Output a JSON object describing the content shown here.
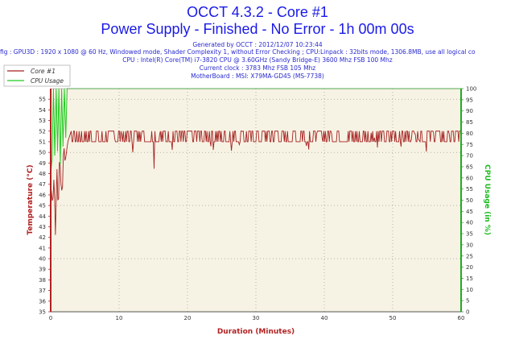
{
  "header": {
    "title_line1": "OCCT 4.3.2 - Core #1",
    "title_line2": "Power Supply - Finished - No Error - 1h 00m 00s",
    "generated": "Generated by OCCT : 2012/12/07 10:23:44",
    "config": "fig : GPU3D : 1920 x 1080 @ 60 Hz, Windowed mode, Shader Complexity 1, without Error Checking ; CPU:Linpack : 32bits mode, 1306.8MB, use all logical co",
    "cpu": "CPU : Intel(R) Core(TM) i7-3820 CPU @ 3.60GHz (Sandy Bridge-E) 3600 Mhz FSB 100 Mhz",
    "clock": "Current clock : 3783 Mhz FSB 105 Mhz",
    "motherboard": "MotherBoard : MSI: X79MA-GD45 (MS-7738)"
  },
  "colors": {
    "temp_series": "#a52222",
    "cpu_series": "#22cc22",
    "plot_bg": "#f7f3e4",
    "grid": "#888888",
    "left_axis": "#b22222",
    "right_axis": "#22aa22"
  },
  "chart_data": {
    "type": "line",
    "xlabel": "Duration (Minutes)",
    "ylabel": "Temperature (°C)",
    "ylabel_right": "CPU Usage (in %)",
    "xlim": [
      0,
      60
    ],
    "ylim": [
      35,
      56
    ],
    "ylim_right": [
      0,
      100
    ],
    "x_ticks": [
      0,
      10,
      20,
      30,
      40,
      50,
      60
    ],
    "y_ticks": [
      35,
      36,
      37,
      38,
      39,
      40,
      41,
      42,
      43,
      44,
      45,
      46,
      47,
      48,
      49,
      50,
      51,
      52,
      53,
      54,
      55
    ],
    "y_ticks_right": [
      0,
      5,
      10,
      15,
      20,
      25,
      30,
      35,
      40,
      45,
      50,
      55,
      60,
      65,
      70,
      75,
      80,
      85,
      90,
      95,
      100
    ],
    "grid": true,
    "legend_position": "top-left",
    "series": [
      {
        "name": "Core #1",
        "axis": "left",
        "baseline": 51,
        "upper": 52,
        "x": [
          0,
          0.3,
          0.5,
          0.7,
          0.9,
          1.1,
          1.3,
          1.5,
          1.7,
          1.9,
          2.1,
          2.5,
          3,
          3.5,
          4,
          5,
          6,
          7,
          8,
          9,
          10,
          11,
          12,
          13,
          14,
          15,
          16,
          17,
          18,
          19,
          20,
          21,
          22,
          23,
          24,
          25,
          26,
          27,
          28,
          29,
          30,
          31,
          32,
          33,
          34,
          35,
          36,
          37,
          38,
          39,
          40,
          41,
          42,
          43,
          44,
          45,
          46,
          47,
          48,
          49,
          50,
          51,
          52,
          53,
          54,
          55,
          56,
          57,
          58,
          59,
          59.5,
          60
        ],
        "values": [
          47,
          45,
          48,
          42,
          49,
          44,
          50,
          47,
          46,
          51,
          49,
          51,
          52,
          50,
          51,
          52,
          51,
          52,
          49,
          51,
          52,
          51,
          50,
          52,
          51,
          48,
          52,
          51,
          50,
          52,
          49,
          51,
          52,
          51,
          50,
          52,
          51,
          49,
          52,
          51,
          52,
          50,
          51,
          52,
          48,
          51,
          52,
          51,
          50,
          52,
          51,
          52,
          49,
          51,
          50,
          52,
          51,
          52,
          50,
          51,
          52,
          51,
          49,
          52,
          51,
          50,
          52,
          51,
          52,
          51,
          52,
          51
        ]
      },
      {
        "name": "CPU Usage",
        "axis": "right",
        "x": [
          0,
          0.2,
          0.4,
          0.6,
          0.8,
          1.0,
          1.2,
          1.4,
          1.6,
          1.8,
          2.0,
          2.2,
          2.4,
          2.6,
          2.8,
          3.0,
          60
        ],
        "values": [
          62,
          68,
          100,
          70,
          100,
          72,
          100,
          66,
          100,
          74,
          100,
          78,
          100,
          100,
          100,
          100,
          100
        ]
      }
    ]
  }
}
